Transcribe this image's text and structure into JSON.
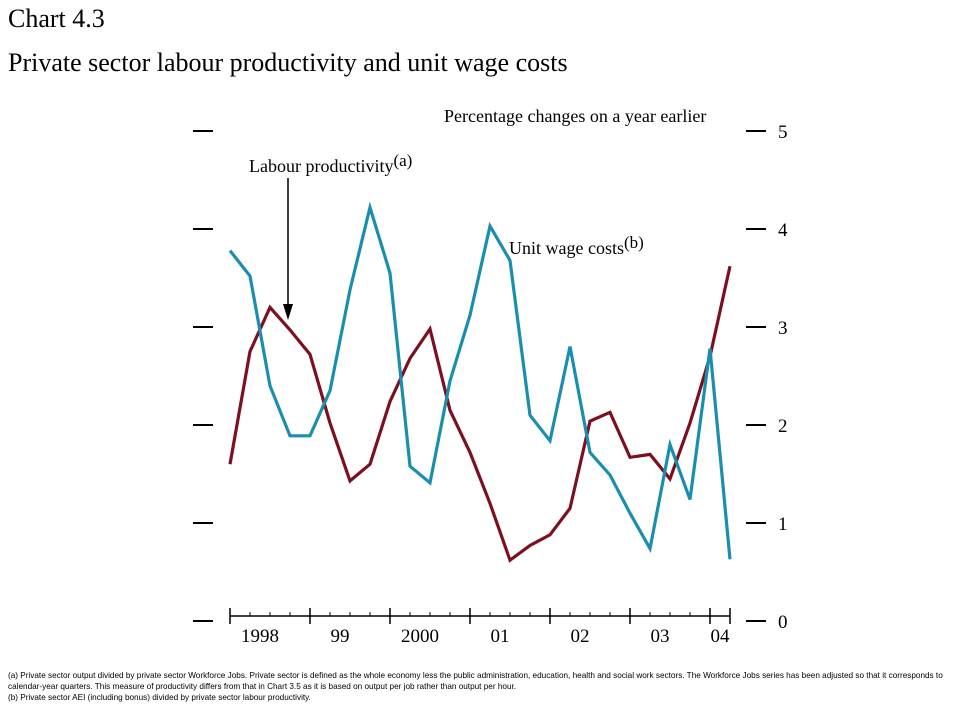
{
  "header": {
    "chart_number": "Chart 4.3",
    "title": "Private sector labour productivity and unit wage costs"
  },
  "footnotes": {
    "a": "(a)  Private sector output divided by private sector Workforce Jobs.  Private sector is defined as the whole economy less the public administration, education, health and social work sectors.  The Workforce Jobs series has been adjusted so that it corresponds to calendar-year quarters.  This measure of productivity differs from that in Chart 3.5 as it is based on output per job rather than output per hour.",
    "b": "(b)  Private sector AEI (including bonus) divided by private sector labour productivity."
  },
  "chart_data": {
    "type": "line",
    "title": "Private sector labour productivity and unit wage costs",
    "unit_label": "Percentage changes on a year earlier",
    "ylim": [
      0,
      5
    ],
    "y_ticks": [
      "0",
      "1",
      "2",
      "3",
      "4",
      "5"
    ],
    "x_tick_labels": [
      "1998",
      "99",
      "2000",
      "01",
      "02",
      "03",
      "04"
    ],
    "quarters": [
      "1998 Q1",
      "1998 Q2",
      "1998 Q3",
      "1998 Q4",
      "1999 Q1",
      "1999 Q2",
      "1999 Q3",
      "1999 Q4",
      "2000 Q1",
      "2000 Q2",
      "2000 Q3",
      "2000 Q4",
      "2001 Q1",
      "2001 Q2",
      "2001 Q3",
      "2001 Q4",
      "2002 Q1",
      "2002 Q2",
      "2002 Q3",
      "2002 Q4",
      "2003 Q1",
      "2003 Q2",
      "2003 Q3",
      "2003 Q4",
      "2004 Q1",
      "2004 Q2"
    ],
    "grid": false,
    "series": [
      {
        "name": "Labour productivity",
        "footnote_marker": "(a)",
        "color": "#7b1020",
        "values": [
          1.6,
          2.75,
          3.2,
          2.97,
          2.72,
          2.02,
          1.43,
          1.6,
          2.24,
          2.68,
          2.98,
          2.15,
          1.72,
          1.2,
          0.62,
          0.77,
          0.88,
          1.15,
          2.04,
          2.13,
          1.67,
          1.7,
          1.45,
          2.02,
          2.7,
          3.62
        ]
      },
      {
        "name": "Unit wage costs",
        "footnote_marker": "(b)",
        "color": "#1b8eb0",
        "values": [
          3.78,
          3.52,
          2.4,
          1.89,
          1.89,
          2.35,
          3.38,
          4.22,
          3.55,
          1.58,
          1.41,
          2.45,
          3.12,
          4.03,
          3.68,
          2.1,
          1.84,
          2.8,
          1.72,
          1.49,
          1.1,
          0.74,
          1.8,
          1.24,
          2.78,
          0.63
        ]
      }
    ],
    "annotations": [
      {
        "text": "Labour productivity",
        "sup": "(a)",
        "points_to": "Labour productivity"
      },
      {
        "text": "Unit wage costs",
        "sup": "(b)",
        "points_to": "Unit wage costs"
      }
    ]
  }
}
